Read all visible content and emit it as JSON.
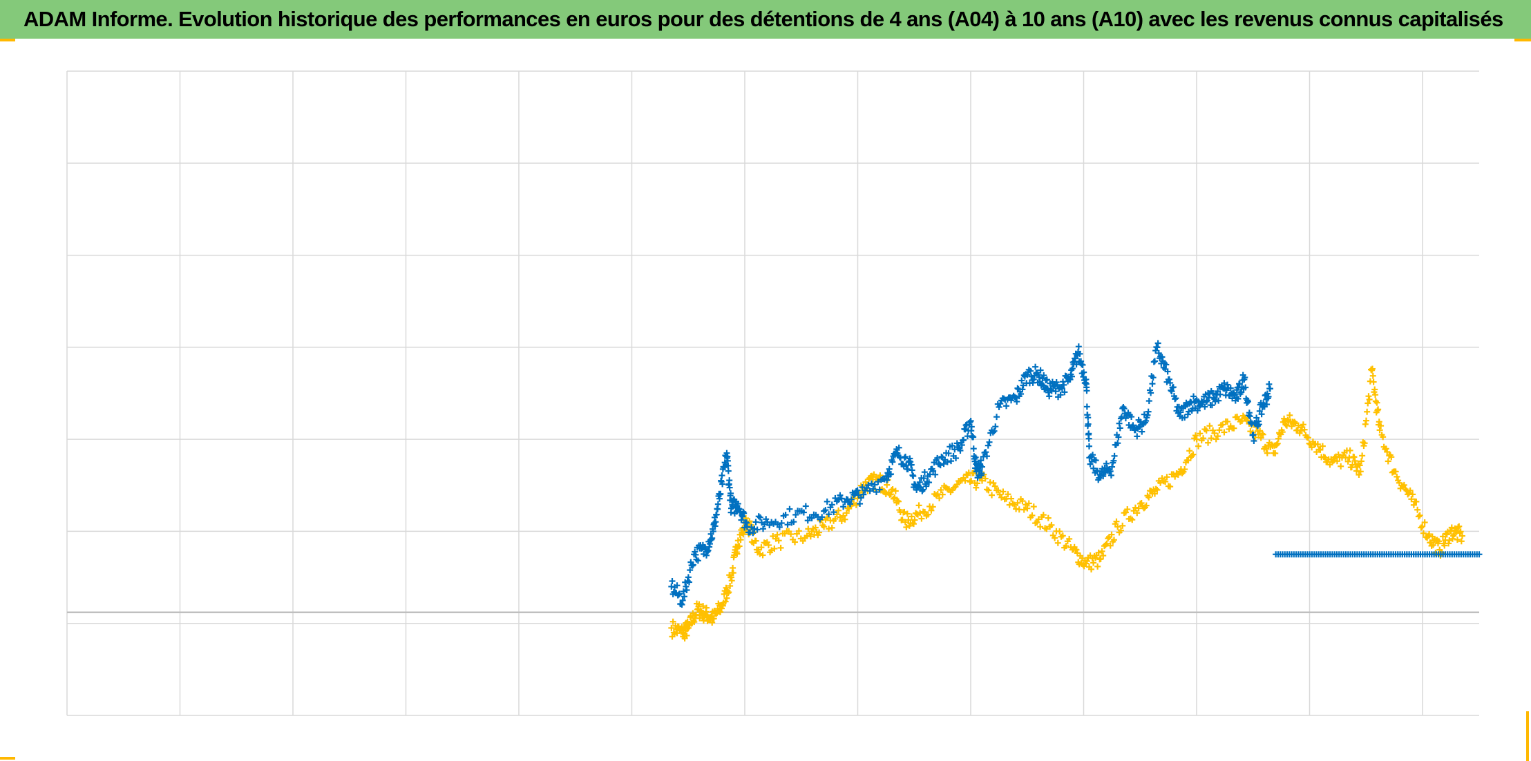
{
  "header": {
    "title": "ADAM Informe. Evolution historique des performances en euros pour des détentions de 4 ans (A04) à 10 ans (A10) avec les revenus connus capitalisés"
  },
  "colors": {
    "title_background": "#84c97a",
    "frame_accent": "#ffb800",
    "gridline": "#d9d9d9",
    "zero_line": "#bfbfbf",
    "series_a04": "#0070c0",
    "series_a10": "#ffc000"
  },
  "chart_data": {
    "type": "scatter",
    "marker": "plus",
    "title": "",
    "xlabel": "",
    "ylabel": "",
    "grid": true,
    "legend": "none",
    "tick_labels_shown": false,
    "x_units": "years since start of horizontal axis (unlabeled)",
    "xlim": [
      0,
      12.5
    ],
    "ylim": [
      -100,
      600
    ],
    "y_reference_line": 0,
    "series": [
      {
        "key": "a04",
        "color": "#0070c0",
        "points": [
          [
            5.35,
            40
          ],
          [
            5.45,
            25
          ],
          [
            5.55,
            75
          ],
          [
            5.65,
            80
          ],
          [
            5.72,
            100
          ],
          [
            5.78,
            140
          ],
          [
            5.84,
            185
          ],
          [
            5.88,
            125
          ],
          [
            5.94,
            130
          ],
          [
            6.02,
            105
          ],
          [
            6.2,
            110
          ],
          [
            6.45,
            118
          ],
          [
            6.7,
            122
          ],
          [
            6.9,
            135
          ],
          [
            7.05,
            140
          ],
          [
            7.25,
            160
          ],
          [
            7.35,
            185
          ],
          [
            7.45,
            175
          ],
          [
            7.52,
            145
          ],
          [
            7.62,
            160
          ],
          [
            7.75,
            180
          ],
          [
            7.9,
            190
          ],
          [
            8.0,
            220
          ],
          [
            8.05,
            165
          ],
          [
            8.1,
            170
          ],
          [
            8.25,
            235
          ],
          [
            8.4,
            245
          ],
          [
            8.5,
            270
          ],
          [
            8.6,
            270
          ],
          [
            8.68,
            255
          ],
          [
            8.78,
            255
          ],
          [
            8.88,
            265
          ],
          [
            8.95,
            295
          ],
          [
            9.02,
            265
          ],
          [
            9.05,
            180
          ],
          [
            9.15,
            160
          ],
          [
            9.25,
            170
          ],
          [
            9.35,
            235
          ],
          [
            9.45,
            210
          ],
          [
            9.55,
            220
          ],
          [
            9.65,
            300
          ],
          [
            9.75,
            265
          ],
          [
            9.85,
            225
          ],
          [
            9.95,
            240
          ],
          [
            10.05,
            240
          ],
          [
            10.15,
            245
          ],
          [
            10.25,
            255
          ],
          [
            10.35,
            245
          ],
          [
            10.42,
            265
          ],
          [
            10.5,
            205
          ],
          [
            10.58,
            235
          ],
          [
            10.65,
            255
          ]
        ],
        "flat_segment": {
          "x_start": 10.7,
          "x_end": 12.5,
          "y": 75
        }
      },
      {
        "key": "a10",
        "color": "#ffc000",
        "points": [
          [
            5.35,
            -5
          ],
          [
            5.45,
            -10
          ],
          [
            5.5,
            -5
          ],
          [
            5.58,
            15
          ],
          [
            5.65,
            10
          ],
          [
            5.72,
            5
          ],
          [
            5.8,
            20
          ],
          [
            5.88,
            50
          ],
          [
            5.94,
            90
          ],
          [
            6.02,
            110
          ],
          [
            6.12,
            80
          ],
          [
            6.3,
            90
          ],
          [
            6.55,
            95
          ],
          [
            6.7,
            105
          ],
          [
            6.9,
            120
          ],
          [
            7.05,
            150
          ],
          [
            7.18,
            155
          ],
          [
            7.3,
            145
          ],
          [
            7.42,
            110
          ],
          [
            7.55,
            120
          ],
          [
            7.75,
            140
          ],
          [
            7.95,
            155
          ],
          [
            8.1,
            155
          ],
          [
            8.3,
            135
          ],
          [
            8.5,
            125
          ],
          [
            8.7,
            105
          ],
          [
            8.9,
            80
          ],
          [
            9.02,
            65
          ],
          [
            9.15,
            70
          ],
          [
            9.3,
            105
          ],
          [
            9.5,
            130
          ],
          [
            9.65,
            145
          ],
          [
            9.85,
            165
          ],
          [
            10.0,
            200
          ],
          [
            10.2,
            210
          ],
          [
            10.4,
            220
          ],
          [
            10.55,
            205
          ],
          [
            10.68,
            185
          ],
          [
            10.78,
            220
          ],
          [
            10.9,
            215
          ],
          [
            11.05,
            195
          ],
          [
            11.2,
            175
          ],
          [
            11.35,
            180
          ],
          [
            11.45,
            165
          ],
          [
            11.55,
            275
          ],
          [
            11.62,
            210
          ],
          [
            11.75,
            165
          ],
          [
            11.9,
            135
          ],
          [
            12.05,
            95
          ],
          [
            12.15,
            80
          ],
          [
            12.25,
            100
          ],
          [
            12.35,
            95
          ]
        ]
      }
    ]
  }
}
